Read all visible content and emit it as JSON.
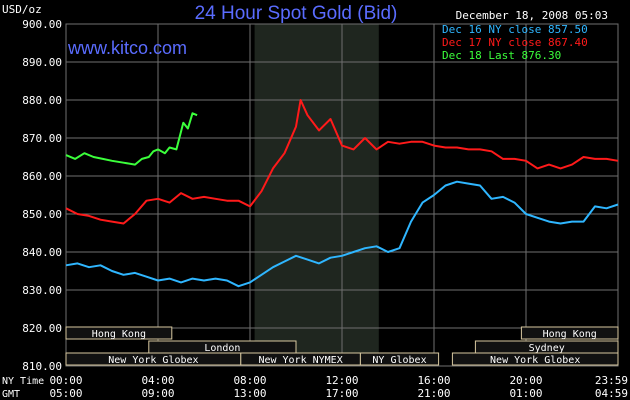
{
  "header": {
    "title": "24 Hour Spot Gold (Bid)",
    "unit": "USD/oz",
    "website": "www.kitco.com",
    "date": "December 18, 2008 05:03"
  },
  "colors": {
    "background": "#000000",
    "grid": "#6f6f6f",
    "text": "#ffffff",
    "title": "#5a6cff",
    "market_hours": "#1f261f",
    "session_box": "#d8c8a0",
    "series_dec16": "#2fb6ff",
    "series_dec17": "#ff1a1a",
    "series_dec18": "#3bff3b"
  },
  "axis_labels": {
    "ny_time": "NY Time",
    "gmt": "GMT"
  },
  "markets": {
    "row1": [
      "Hong Kong",
      "Hong Kong"
    ],
    "row2": [
      "London",
      "Sydney"
    ],
    "row3": [
      "New York Globex",
      "New York NYMEX",
      "NY Globex",
      "New York Globex"
    ]
  },
  "chart_data": {
    "type": "line",
    "title": "24 Hour Spot Gold (Bid)",
    "ylabel": "USD/oz",
    "ylim": [
      810,
      900
    ],
    "y_ticks": [
      "900.00",
      "890.00",
      "880.00",
      "870.00",
      "860.00",
      "850.00",
      "840.00",
      "830.00",
      "820.00",
      "810.00"
    ],
    "y_tick_values": [
      900,
      890,
      880,
      870,
      860,
      850,
      840,
      830,
      820,
      810
    ],
    "xlim": [
      0,
      24
    ],
    "x_ticks_ny": [
      "00:00",
      "04:00",
      "08:00",
      "12:00",
      "16:00",
      "20:00",
      "23:59"
    ],
    "x_ticks_gmt": [
      "05:00",
      "09:00",
      "13:00",
      "17:00",
      "21:00",
      "01:00",
      "04:59"
    ],
    "x_tick_values": [
      0,
      4,
      8,
      12,
      16,
      20,
      24
    ],
    "market_hours_span": [
      8.2,
      13.6
    ],
    "grid": true,
    "legend_position": "top-right",
    "series": [
      {
        "name": "Dec 16 NY close 857.50",
        "color": "#2fb6ff",
        "points": [
          [
            0,
            836.5
          ],
          [
            0.5,
            837
          ],
          [
            1,
            836
          ],
          [
            1.5,
            836.5
          ],
          [
            2,
            835
          ],
          [
            2.5,
            834
          ],
          [
            3,
            834.5
          ],
          [
            3.5,
            833.5
          ],
          [
            4,
            832.5
          ],
          [
            4.5,
            833
          ],
          [
            5,
            832
          ],
          [
            5.5,
            833
          ],
          [
            6,
            832.5
          ],
          [
            6.5,
            833
          ],
          [
            7,
            832.5
          ],
          [
            7.5,
            831
          ],
          [
            8,
            832
          ],
          [
            8.5,
            834
          ],
          [
            9,
            836
          ],
          [
            9.5,
            837.5
          ],
          [
            10,
            839
          ],
          [
            10.5,
            838
          ],
          [
            11,
            837
          ],
          [
            11.5,
            838.5
          ],
          [
            12,
            839
          ],
          [
            12.5,
            840
          ],
          [
            13,
            841
          ],
          [
            13.5,
            841.5
          ],
          [
            14,
            840
          ],
          [
            14.5,
            841
          ],
          [
            15,
            848
          ],
          [
            15.5,
            853
          ],
          [
            16,
            855
          ],
          [
            16.5,
            857.5
          ],
          [
            17,
            858.5
          ],
          [
            17.5,
            858
          ],
          [
            18,
            857.5
          ],
          [
            18.5,
            854
          ],
          [
            19,
            854.5
          ],
          [
            19.5,
            853
          ],
          [
            20,
            850
          ],
          [
            20.5,
            849
          ],
          [
            21,
            848
          ],
          [
            21.5,
            847.5
          ],
          [
            22,
            848
          ],
          [
            22.5,
            848
          ],
          [
            23,
            852
          ],
          [
            23.5,
            851.5
          ],
          [
            24,
            852.5
          ]
        ]
      },
      {
        "name": "Dec 17 NY close 867.40",
        "color": "#ff1a1a",
        "points": [
          [
            0,
            851.5
          ],
          [
            0.5,
            850
          ],
          [
            1,
            849.5
          ],
          [
            1.5,
            848.5
          ],
          [
            2,
            848
          ],
          [
            2.5,
            847.5
          ],
          [
            3,
            850
          ],
          [
            3.5,
            853.5
          ],
          [
            4,
            854
          ],
          [
            4.5,
            853
          ],
          [
            5,
            855.5
          ],
          [
            5.5,
            854
          ],
          [
            6,
            854.5
          ],
          [
            6.5,
            854
          ],
          [
            7,
            853.5
          ],
          [
            7.5,
            853.5
          ],
          [
            8,
            852
          ],
          [
            8.5,
            856
          ],
          [
            9,
            862
          ],
          [
            9.5,
            866
          ],
          [
            10,
            873
          ],
          [
            10.2,
            880
          ],
          [
            10.5,
            876
          ],
          [
            11,
            872
          ],
          [
            11.5,
            875
          ],
          [
            12,
            868
          ],
          [
            12.5,
            867
          ],
          [
            13,
            870
          ],
          [
            13.5,
            867
          ],
          [
            14,
            869
          ],
          [
            14.5,
            868.5
          ],
          [
            15,
            869
          ],
          [
            15.5,
            869
          ],
          [
            16,
            868
          ],
          [
            16.5,
            867.5
          ],
          [
            17,
            867.5
          ],
          [
            17.5,
            867
          ],
          [
            18,
            867
          ],
          [
            18.5,
            866.5
          ],
          [
            19,
            864.5
          ],
          [
            19.5,
            864.5
          ],
          [
            20,
            864
          ],
          [
            20.5,
            862
          ],
          [
            21,
            863
          ],
          [
            21.5,
            862
          ],
          [
            22,
            863
          ],
          [
            22.5,
            865
          ],
          [
            23,
            864.5
          ],
          [
            23.5,
            864.5
          ],
          [
            24,
            864
          ]
        ]
      },
      {
        "name": "Dec 18 Last 876.30",
        "color": "#3bff3b",
        "points": [
          [
            0,
            865.5
          ],
          [
            0.4,
            864.5
          ],
          [
            0.8,
            866
          ],
          [
            1.2,
            865
          ],
          [
            1.6,
            864.5
          ],
          [
            2,
            864
          ],
          [
            2.5,
            863.5
          ],
          [
            3,
            863
          ],
          [
            3.3,
            864.5
          ],
          [
            3.6,
            865
          ],
          [
            3.8,
            866.5
          ],
          [
            4,
            867
          ],
          [
            4.3,
            866
          ],
          [
            4.5,
            867.5
          ],
          [
            4.8,
            867
          ],
          [
            5.1,
            874
          ],
          [
            5.3,
            872.5
          ],
          [
            5.5,
            876.5
          ],
          [
            5.7,
            876
          ]
        ]
      }
    ]
  }
}
